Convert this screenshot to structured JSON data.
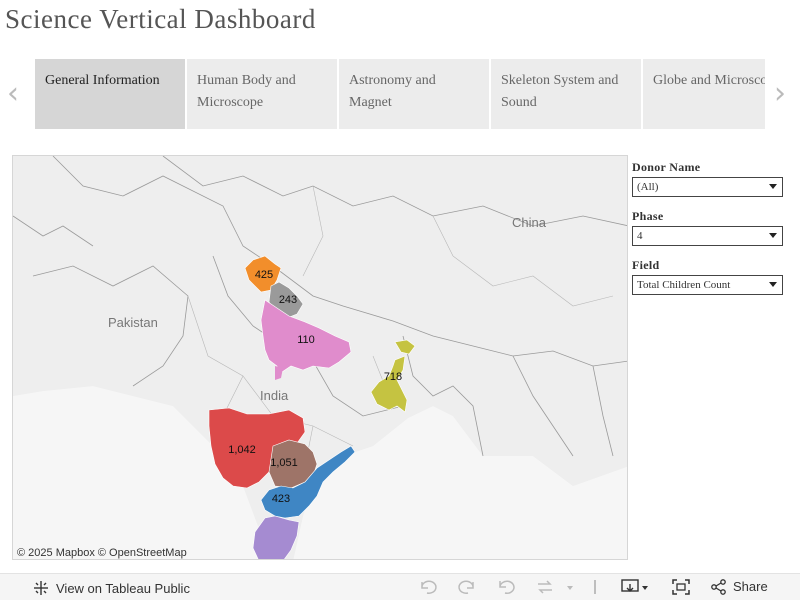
{
  "title": "Science Vertical Dashboard",
  "tabs": [
    {
      "label": "General Information",
      "active": true
    },
    {
      "label": "Human Body and Microscope",
      "active": false
    },
    {
      "label": "Astronomy and Magnet",
      "active": false
    },
    {
      "label": "Skeleton System and Sound",
      "active": false
    },
    {
      "label": "Globe and Microscope",
      "active": false
    }
  ],
  "nav": {
    "prev_icon": "chevron-left-icon",
    "next_icon": "chevron-right-icon"
  },
  "map": {
    "country_labels": {
      "china": "China",
      "pakistan": "Pakistan",
      "india": "India"
    },
    "regions": [
      {
        "name": "region-425",
        "value": "425",
        "color": "#f28e2b"
      },
      {
        "name": "region-243",
        "value": "243",
        "color": "#9a9a9a"
      },
      {
        "name": "region-110",
        "value": "110",
        "color": "#e08ccc"
      },
      {
        "name": "region-718",
        "value": "718",
        "color": "#c5c341"
      },
      {
        "name": "region-1042",
        "value": "1,042",
        "color": "#dc4a4a"
      },
      {
        "name": "region-1051",
        "value": "1,051",
        "color": "#9e7468"
      },
      {
        "name": "region-423",
        "value": "423",
        "color": "#3f86c4"
      },
      {
        "name": "region-south",
        "value": "",
        "color": "#a58bd1"
      }
    ],
    "attribution": "© 2025 Mapbox  © OpenStreetMap"
  },
  "filters": [
    {
      "label": "Donor  Name",
      "value": "(All)"
    },
    {
      "label": "Phase",
      "value": "4"
    },
    {
      "label": "Field",
      "value": "Total Children Count"
    }
  ],
  "footer": {
    "view_label": "View on Tableau Public",
    "share_label": "Share"
  }
}
